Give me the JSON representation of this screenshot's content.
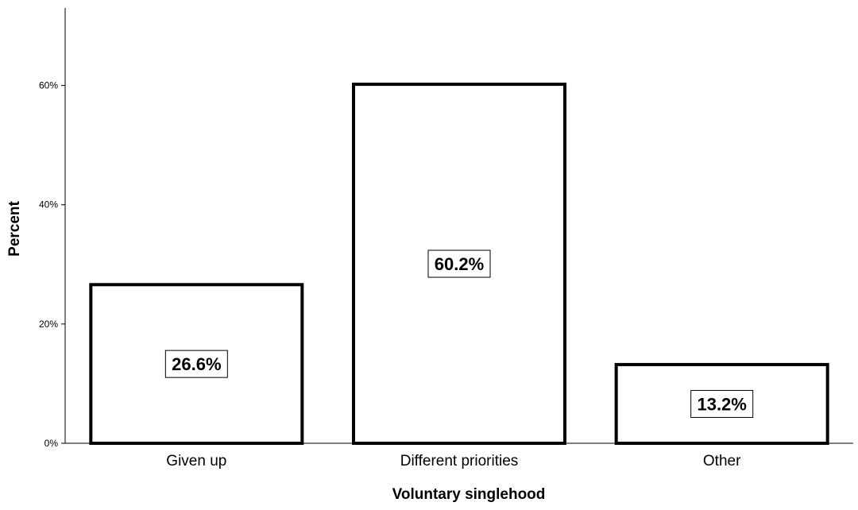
{
  "chart_data": {
    "type": "bar",
    "title": "",
    "xlabel": "Voluntary singlehood",
    "ylabel": "Percent",
    "categories": [
      "Given up",
      "Different priorities",
      "Other"
    ],
    "values": [
      26.6,
      60.2,
      13.2
    ],
    "data_labels": [
      "26.6%",
      "60.2%",
      "13.2%"
    ],
    "ylim": [
      0,
      73
    ],
    "yticks": [
      0,
      20,
      40,
      60
    ],
    "ytick_labels": [
      "0%",
      "20%",
      "40%",
      "60%"
    ],
    "grid": false,
    "colors": {
      "bar_fill": "#ffffff",
      "bar_stroke": "#000000",
      "text": "#000000"
    }
  }
}
